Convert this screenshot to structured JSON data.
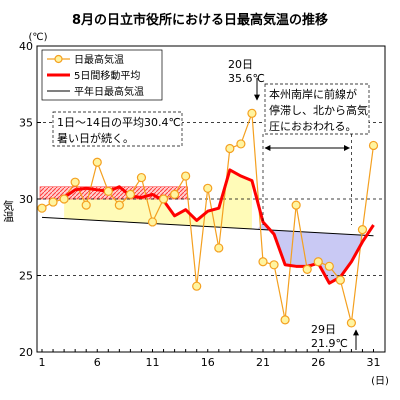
{
  "chart_data": {
    "type": "line",
    "title": "8月の日立市役所における日最高気温の推移",
    "yunit": "(℃)",
    "ylabel": "気温",
    "xunit": "(日)",
    "xlim": [
      1,
      31
    ],
    "ylim": [
      20,
      40
    ],
    "yticks": [
      20,
      25,
      30,
      35,
      40
    ],
    "xticks": [
      1,
      6,
      11,
      16,
      21,
      26,
      31
    ],
    "dashed_grid": [
      25,
      30,
      35
    ],
    "series": [
      {
        "name": "日最高気温",
        "color": "#f4a020",
        "marker_fill": "#fff4a0",
        "x": [
          1,
          2,
          3,
          4,
          5,
          6,
          7,
          8,
          9,
          10,
          11,
          12,
          13,
          14,
          15,
          16,
          17,
          18,
          19,
          20,
          21,
          22,
          23,
          24,
          25,
          26,
          27,
          28,
          29,
          30,
          31
        ],
        "y": [
          29.4,
          29.8,
          30.0,
          31.1,
          29.6,
          32.4,
          30.5,
          29.6,
          30.3,
          31.4,
          28.5,
          30.0,
          30.3,
          31.5,
          24.3,
          30.7,
          26.8,
          33.3,
          33.6,
          35.6,
          25.9,
          25.7,
          22.1,
          29.6,
          25.4,
          25.9,
          25.6,
          24.7,
          21.9,
          28.0,
          33.5
        ]
      },
      {
        "name": "5日間移動平均",
        "color": "#ff0000",
        "x": [
          3,
          4,
          5,
          6,
          7,
          8,
          9,
          10,
          11,
          12,
          13,
          14,
          15,
          16,
          17,
          18,
          19,
          20,
          21,
          22,
          23,
          24,
          25,
          26,
          27,
          28,
          29,
          30,
          31
        ],
        "y": [
          30.1,
          30.6,
          30.7,
          30.6,
          30.5,
          30.8,
          30.2,
          30.1,
          30.3,
          29.9,
          28.9,
          29.3,
          28.6,
          29.2,
          29.4,
          31.9,
          31.5,
          31.2,
          28.5,
          27.7,
          25.7,
          25.6,
          25.6,
          25.8,
          24.5,
          24.9,
          25.9,
          27.2,
          28.3
        ]
      },
      {
        "name": "平年日最高気温",
        "color": "#000000",
        "x": [
          1,
          31
        ],
        "y": [
          28.8,
          27.6
        ]
      }
    ],
    "annotations": [
      {
        "lines": [
          "1日～14日の平均30.4℃",
          "暑い日が続く。"
        ]
      },
      {
        "lines": [
          "本州南岸に前線が",
          "停滞し、北から高気",
          "圧におおわれる。"
        ]
      },
      {
        "lines": [
          "20日",
          "35.6℃"
        ]
      },
      {
        "lines": [
          "29日",
          "21.9℃"
        ]
      }
    ],
    "hatched_range": {
      "x": [
        1,
        14
      ],
      "y": [
        30,
        30.8
      ],
      "color": "#ff4444"
    },
    "front_span": {
      "x": [
        21,
        29
      ]
    }
  }
}
